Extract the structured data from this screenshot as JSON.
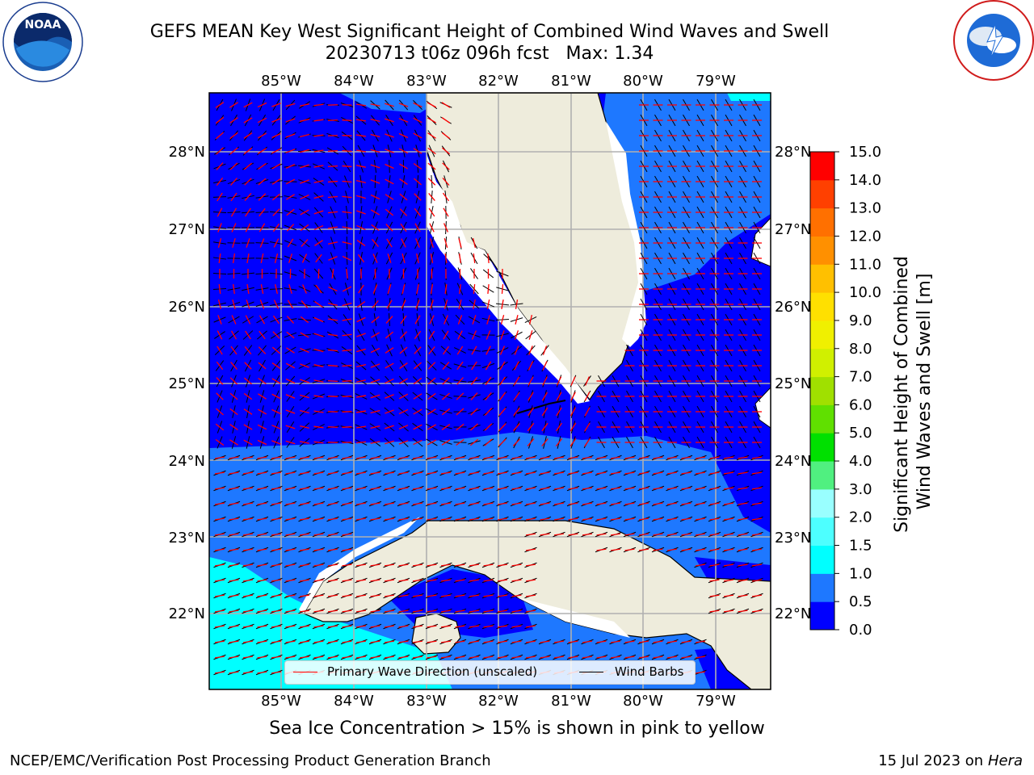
{
  "header": {
    "title": "GEFS MEAN Key West Significant Height of Combined Wind Waves and Swell",
    "subtitle": "20230713 t06z 096h fcst   Max: 1.34"
  },
  "logos": {
    "left": {
      "name": "noaa-logo",
      "text": "NOAA",
      "ring_text": "NATIONAL OCEANIC AND ATMOSPHERIC ADMINISTRATION · U.S. DEPARTMENT OF COMMERCE"
    },
    "right": {
      "name": "nws-logo",
      "ring_text": "NATIONAL WEATHER SERVICE"
    }
  },
  "map": {
    "lon_ticks": [
      "85°W",
      "84°W",
      "83°W",
      "82°W",
      "81°W",
      "80°W",
      "79°W"
    ],
    "lat_ticks": [
      "28°N",
      "27°N",
      "26°N",
      "25°N",
      "24°N",
      "23°N",
      "22°N"
    ],
    "colors": {
      "band_0_0.5": "#0000ff",
      "band_0.5_1.0": "#1e78ff",
      "band_1.0_1.5": "#00ffff",
      "land": "#eeecdc",
      "grid": "#b0b0b0",
      "wave_arrow": "#ff0000",
      "wind_barb": "#000000"
    }
  },
  "legend": {
    "wave_label": "Primary Wave Direction (unscaled)",
    "wind_label": "Wind Barbs"
  },
  "colorbar": {
    "title_line1": "Significant Height of Combined",
    "title_line2": "Wind Waves and Swell [m]",
    "levels": [
      "0.0",
      "0.5",
      "1.0",
      "1.5",
      "2.0",
      "3.0",
      "4.0",
      "5.0",
      "6.0",
      "7.0",
      "8.0",
      "9.0",
      "10.0",
      "11.0",
      "12.0",
      "13.0",
      "14.0",
      "15.0"
    ],
    "colors": [
      "#0000ff",
      "#1e78ff",
      "#00ffff",
      "#4dffff",
      "#99ffff",
      "#50f080",
      "#00e000",
      "#60e000",
      "#a0e000",
      "#d0f000",
      "#f0f000",
      "#ffe000",
      "#ffc000",
      "#ff9000",
      "#ff7000",
      "#ff4000",
      "#ff0000"
    ]
  },
  "footnote": "Sea Ice Concentration > 15% is shown in pink to yellow",
  "credits": {
    "left": "NCEP/EMC/Verification Post Processing Product Generation Branch",
    "right_date": "15 Jul 2023 on",
    "right_host": "Hera"
  }
}
